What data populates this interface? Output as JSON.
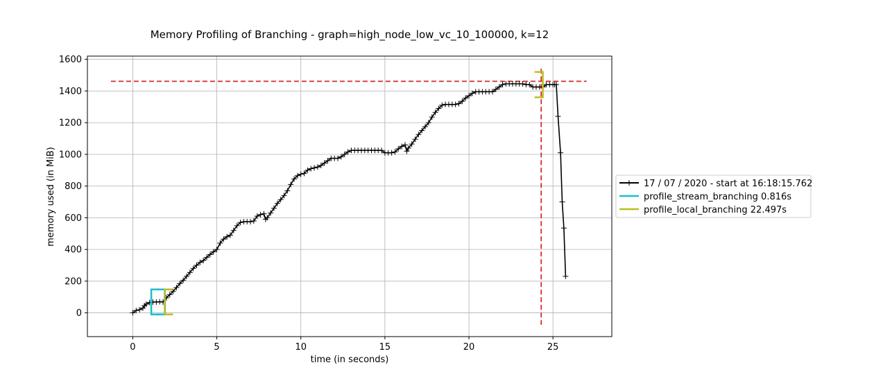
{
  "chart_data": {
    "type": "line",
    "title": "Memory Profiling of Branching - graph=high_node_low_vc_10_100000, k=12",
    "xlabel": "time (in seconds)",
    "ylabel": "memory used (in MiB)",
    "xlim": [
      -2.7,
      28.5
    ],
    "ylim": [
      -150,
      1620
    ],
    "xticks": [
      0,
      5,
      10,
      15,
      20,
      25
    ],
    "yticks": [
      0,
      200,
      400,
      600,
      800,
      1000,
      1200,
      1400,
      1600
    ],
    "grid": true,
    "legend_position": "right",
    "max_memory_line": {
      "y": 1461,
      "color": "#d62728"
    },
    "max_time_line": {
      "x": 24.3,
      "color": "#d62728"
    },
    "series": [
      {
        "name": "17 / 07 / 2020 - start at 16:18:15.762",
        "color": "#000000",
        "marker": "+",
        "x": [
          0.0,
          0.2,
          0.4,
          0.6,
          0.7,
          0.8,
          1.0,
          1.2,
          1.4,
          1.6,
          1.8,
          2.0,
          2.2,
          2.4,
          2.6,
          2.8,
          3.0,
          3.2,
          3.4,
          3.6,
          3.8,
          4.0,
          4.2,
          4.4,
          4.6,
          4.8,
          5.0,
          5.2,
          5.4,
          5.6,
          5.8,
          6.0,
          6.2,
          6.4,
          6.6,
          6.8,
          7.0,
          7.2,
          7.4,
          7.6,
          7.8,
          7.9,
          8.0,
          8.2,
          8.4,
          8.6,
          8.8,
          9.0,
          9.2,
          9.4,
          9.6,
          9.8,
          10.0,
          10.2,
          10.4,
          10.6,
          10.8,
          11.0,
          11.2,
          11.4,
          11.6,
          11.8,
          12.0,
          12.2,
          12.4,
          12.6,
          12.8,
          13.0,
          13.2,
          13.4,
          13.6,
          13.8,
          14.0,
          14.2,
          14.4,
          14.6,
          14.8,
          15.0,
          15.2,
          15.4,
          15.6,
          15.8,
          16.0,
          16.2,
          16.3,
          16.4,
          16.6,
          16.8,
          17.0,
          17.2,
          17.4,
          17.6,
          17.8,
          18.0,
          18.2,
          18.4,
          18.6,
          18.8,
          19.0,
          19.2,
          19.4,
          19.6,
          19.8,
          20.0,
          20.2,
          20.4,
          20.6,
          20.8,
          21.0,
          21.2,
          21.4,
          21.6,
          21.8,
          22.0,
          22.2,
          22.4,
          22.6,
          22.8,
          23.0,
          23.2,
          23.4,
          23.6,
          23.8,
          24.0,
          24.2,
          24.4,
          24.6,
          24.8,
          25.0,
          25.1,
          25.2,
          25.3,
          25.45,
          25.55,
          25.65,
          25.75
        ],
        "y": [
          0,
          15,
          20,
          30,
          45,
          55,
          65,
          68,
          68,
          70,
          68,
          95,
          115,
          135,
          160,
          185,
          205,
          230,
          255,
          280,
          300,
          318,
          330,
          350,
          368,
          385,
          400,
          440,
          465,
          480,
          490,
          520,
          550,
          570,
          575,
          575,
          575,
          580,
          610,
          620,
          625,
          590,
          600,
          630,
          660,
          690,
          715,
          740,
          770,
          810,
          845,
          865,
          875,
          880,
          900,
          910,
          915,
          920,
          930,
          945,
          960,
          975,
          975,
          975,
          985,
          1000,
          1015,
          1025,
          1025,
          1025,
          1025,
          1025,
          1025,
          1025,
          1025,
          1025,
          1025,
          1010,
          1010,
          1010,
          1015,
          1035,
          1050,
          1060,
          1020,
          1040,
          1065,
          1095,
          1125,
          1150,
          1175,
          1200,
          1235,
          1265,
          1290,
          1310,
          1315,
          1315,
          1315,
          1315,
          1320,
          1335,
          1355,
          1370,
          1385,
          1395,
          1395,
          1395,
          1395,
          1395,
          1395,
          1410,
          1425,
          1440,
          1445,
          1445,
          1445,
          1445,
          1445,
          1445,
          1440,
          1440,
          1425,
          1425,
          1425,
          1425,
          1440,
          1440,
          1440,
          1440,
          1440,
          1240,
          1010,
          700,
          535,
          230
        ]
      },
      {
        "name": "profile_stream_branching 0.816s",
        "color": "#17becf",
        "bracket": {
          "start": 1.1,
          "end": 1.916,
          "y_low": -10,
          "y_high": 148
        }
      },
      {
        "name": "profile_local_branching 22.497s",
        "color": "#bcbd22",
        "bracket": {
          "start": 1.9,
          "end": 24.397,
          "y_low": -10,
          "y_high": 148,
          "end_y_low": 1360,
          "end_y_high": 1520
        }
      }
    ]
  }
}
